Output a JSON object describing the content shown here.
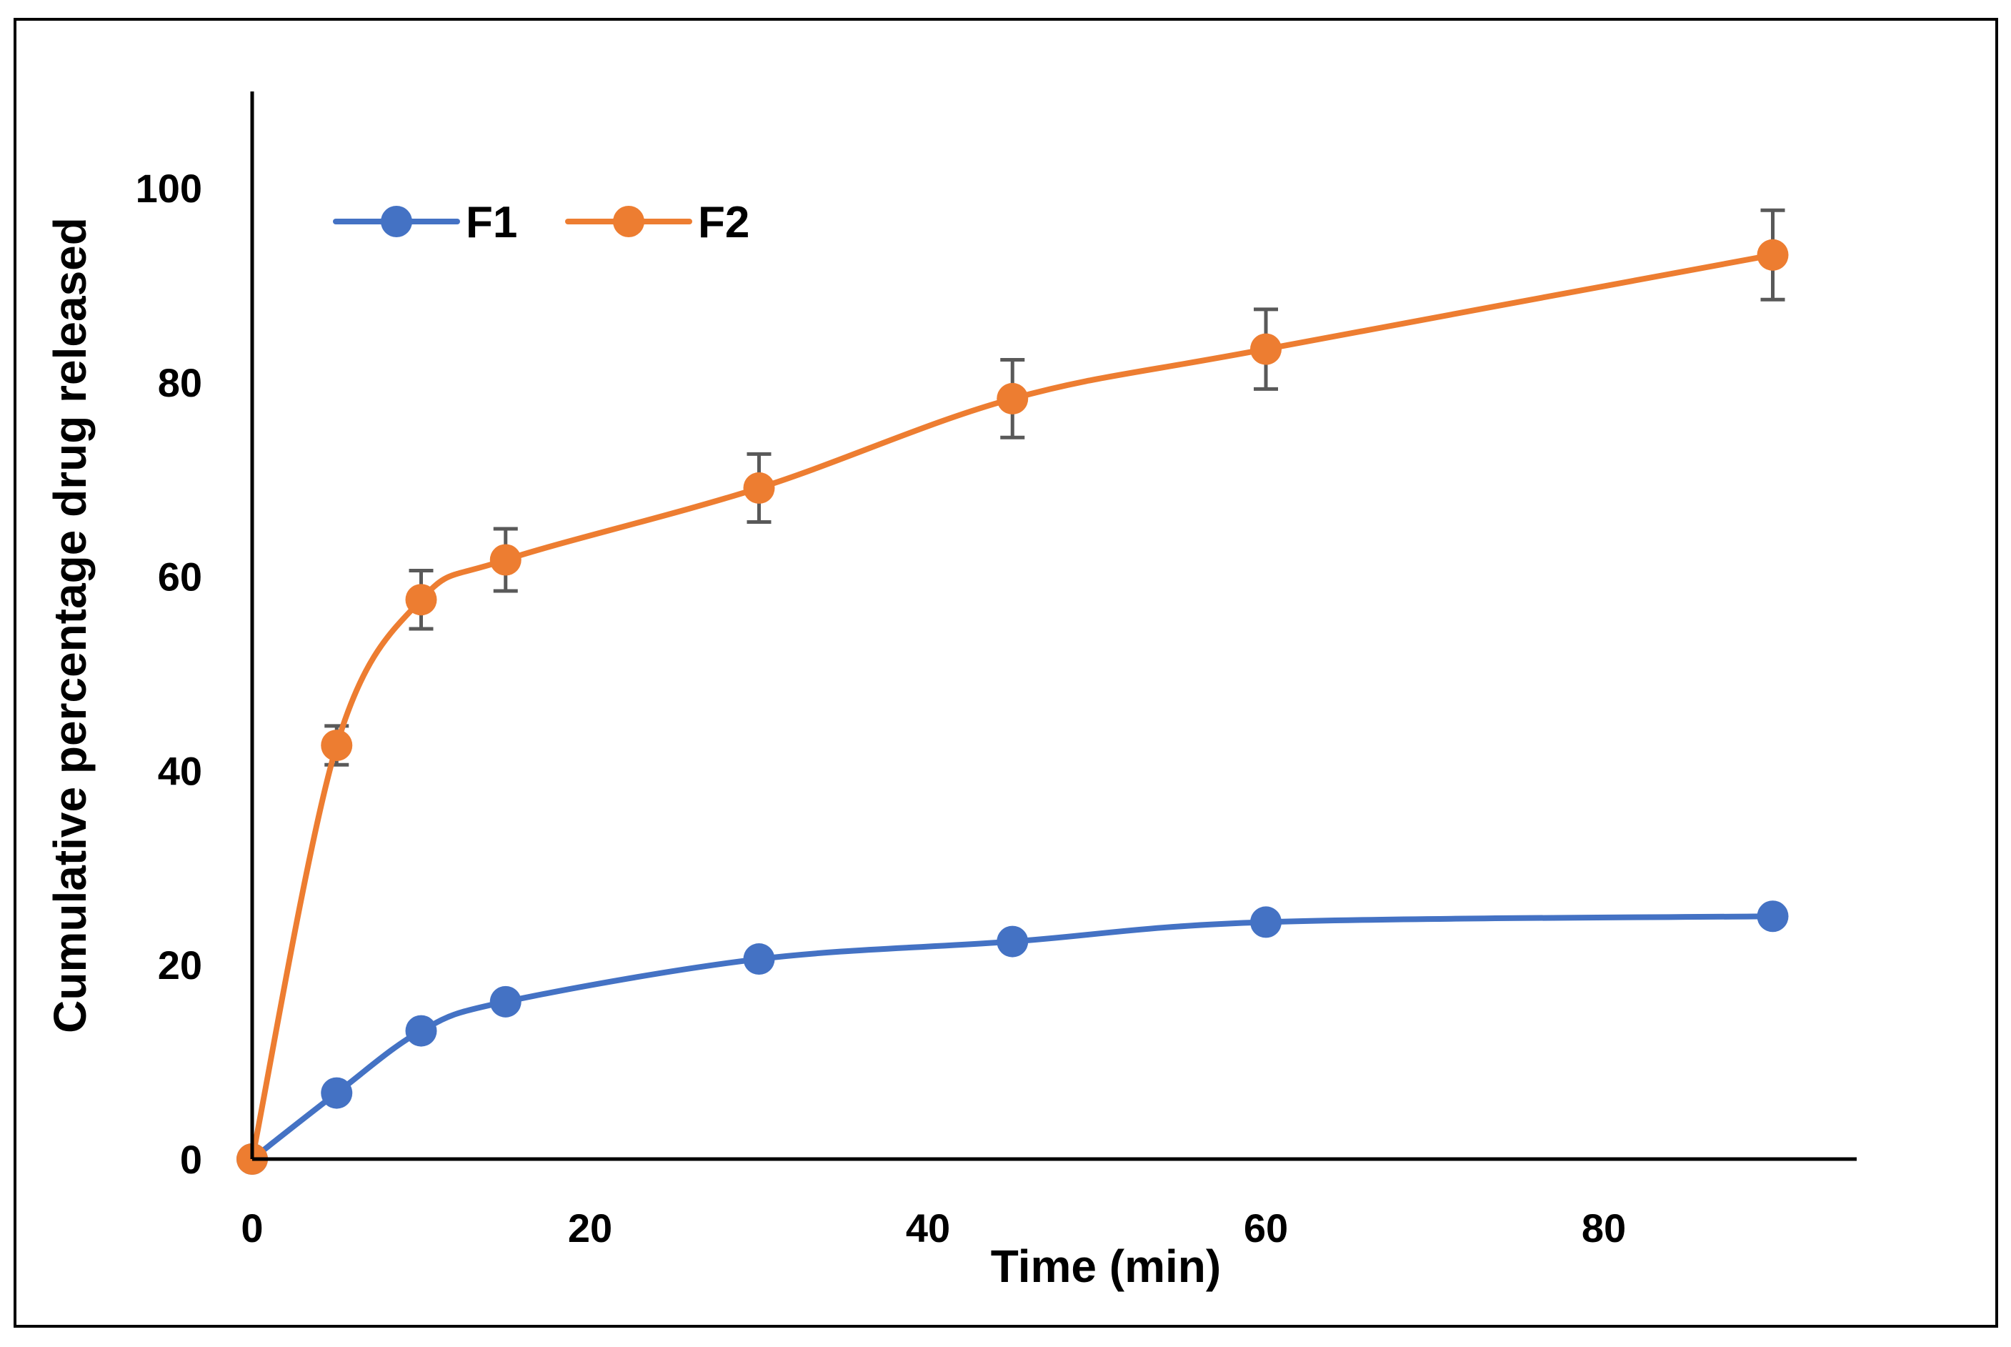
{
  "chart_data": {
    "type": "line",
    "title": "",
    "xlabel": "Time (min)",
    "ylabel": "Cumulative percentage drug released",
    "xlim": [
      0,
      95
    ],
    "ylim": [
      0,
      110
    ],
    "x_ticks": [
      "0",
      "20",
      "40",
      "60",
      "80"
    ],
    "x_tick_values": [
      0,
      20,
      40,
      60,
      80
    ],
    "y_ticks": [
      "0",
      "20",
      "40",
      "60",
      "80",
      "100"
    ],
    "y_tick_values": [
      0,
      20,
      40,
      60,
      80,
      100
    ],
    "grid": false,
    "legend_position": "top-left",
    "x": [
      0,
      5,
      10,
      15,
      30,
      45,
      60,
      90
    ],
    "series": [
      {
        "name": "F1",
        "color": "#4472C4",
        "values": [
          0,
          6.8,
          13.2,
          16.2,
          20.6,
          22.4,
          24.4,
          25.0
        ],
        "error": [
          0,
          0,
          0,
          0,
          0,
          0,
          0,
          0
        ]
      },
      {
        "name": "F2",
        "color": "#ED7D31",
        "values": [
          0,
          42.6,
          57.6,
          61.7,
          69.1,
          78.3,
          83.4,
          93.1
        ],
        "error": [
          0,
          2.0,
          3.0,
          3.2,
          3.5,
          4.0,
          4.1,
          4.6
        ]
      }
    ],
    "error_bar_color": "#595959",
    "frame_color": "#000000"
  }
}
